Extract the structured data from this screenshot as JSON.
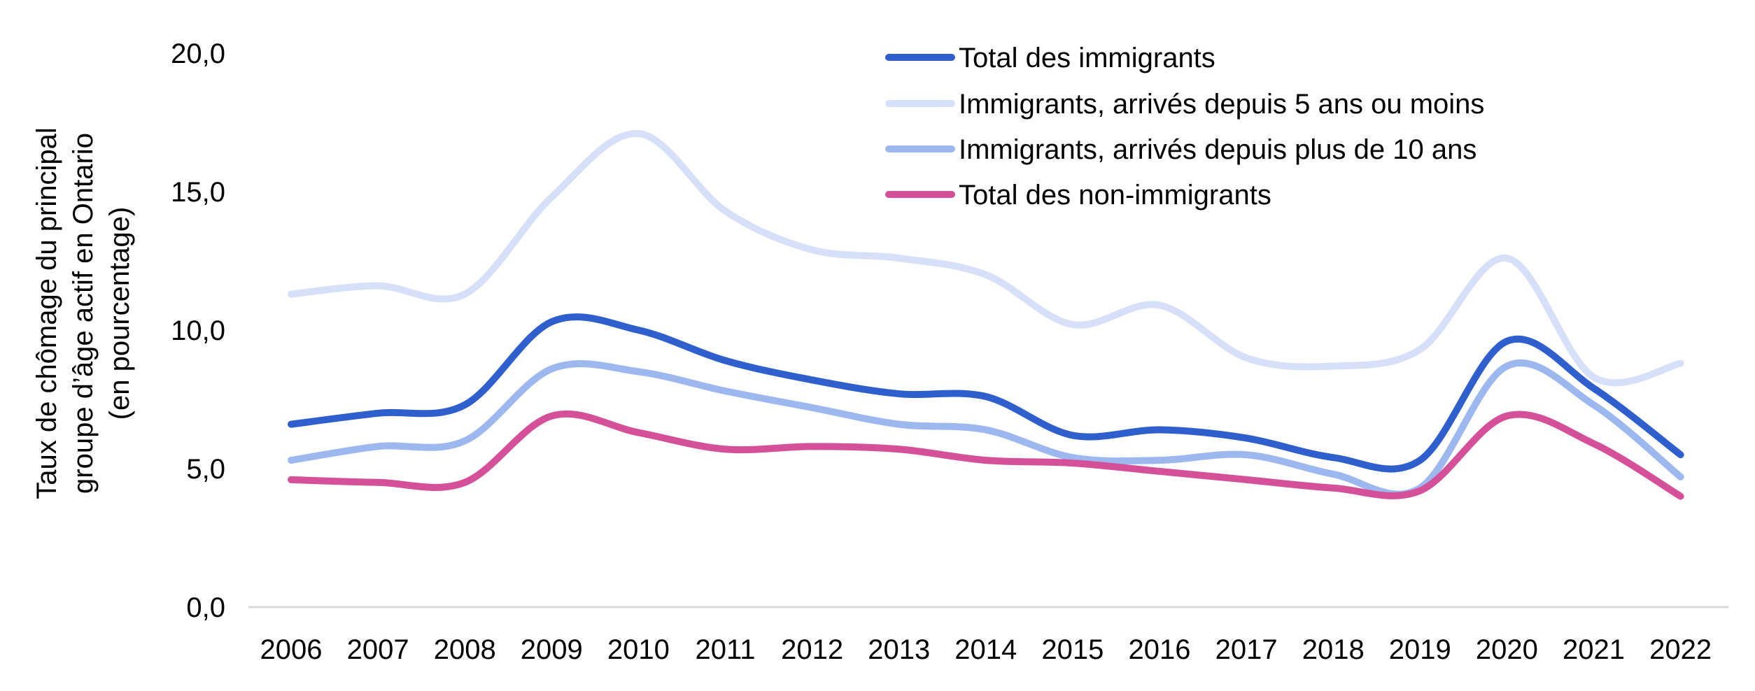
{
  "chart_data": {
    "type": "line",
    "title": "",
    "xlabel": "",
    "ylabel_lines": [
      "Taux de chômage du principal",
      "groupe d’âge actif en Ontario",
      "(en pourcentage)"
    ],
    "categories": [
      "2006",
      "2007",
      "2008",
      "2009",
      "2010",
      "2011",
      "2012",
      "2013",
      "2014",
      "2015",
      "2016",
      "2017",
      "2018",
      "2019",
      "2020",
      "2021",
      "2022"
    ],
    "ylim": [
      0,
      20
    ],
    "yticks": [
      "0,0",
      "5,0",
      "10,0",
      "15,0",
      "20,0"
    ],
    "ytick_values": [
      0,
      5,
      10,
      15,
      20
    ],
    "grid": false,
    "legend_position": "top-right",
    "series": [
      {
        "name": "Total des immigrants",
        "color": "#2f5fcc",
        "values": [
          6.6,
          7.0,
          7.3,
          10.3,
          10.0,
          8.9,
          8.2,
          7.7,
          7.6,
          6.2,
          6.4,
          6.1,
          5.4,
          5.3,
          9.6,
          7.9,
          5.5
        ]
      },
      {
        "name": "Immigrants, arrivés depuis 5 ans ou moins",
        "color": "#d6e0f8",
        "values": [
          11.3,
          11.6,
          11.3,
          14.8,
          17.1,
          14.3,
          12.9,
          12.6,
          12.0,
          10.2,
          10.9,
          9.0,
          8.7,
          9.3,
          12.6,
          8.3,
          8.8
        ]
      },
      {
        "name": "Immigrants, arrivés depuis plus de 10 ans",
        "color": "#9db8ef",
        "values": [
          5.3,
          5.8,
          6.0,
          8.6,
          8.5,
          7.8,
          7.2,
          6.6,
          6.4,
          5.4,
          5.3,
          5.5,
          4.8,
          4.3,
          8.7,
          7.3,
          4.7
        ]
      },
      {
        "name": "Total des non-immigrants",
        "color": "#d4519a",
        "values": [
          4.6,
          4.5,
          4.5,
          6.9,
          6.3,
          5.7,
          5.8,
          5.7,
          5.3,
          5.2,
          4.9,
          4.6,
          4.3,
          4.2,
          6.9,
          5.9,
          4.0
        ]
      }
    ]
  }
}
